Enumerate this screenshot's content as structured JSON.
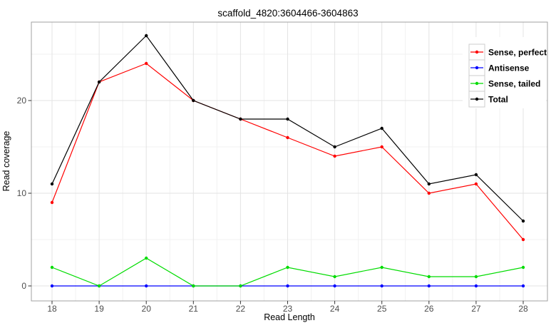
{
  "title": "scaffold_4820:3604466-3604863",
  "chart_data": {
    "type": "line",
    "title": "scaffold_4820:3604466-3604863",
    "xlabel": "Read Length",
    "ylabel": "Read coverage",
    "x": [
      18,
      19,
      20,
      21,
      22,
      23,
      24,
      25,
      26,
      27,
      28
    ],
    "series": [
      {
        "name": "Sense, perfect",
        "color": "#FF0000",
        "values": [
          9,
          22,
          24,
          20,
          18,
          16,
          14,
          15,
          10,
          11,
          5
        ]
      },
      {
        "name": "Antisense",
        "color": "#0000FF",
        "values": [
          0,
          0,
          0,
          0,
          0,
          0,
          0,
          0,
          0,
          0,
          0
        ]
      },
      {
        "name": "Sense, tailed",
        "color": "#00DC00",
        "values": [
          2,
          0,
          3,
          0,
          0,
          2,
          1,
          2,
          1,
          1,
          2
        ]
      },
      {
        "name": "Total",
        "color": "#000000",
        "values": [
          11,
          22,
          27,
          20,
          18,
          18,
          15,
          17,
          11,
          12,
          7
        ]
      }
    ],
    "yticks": [
      0,
      10,
      20
    ],
    "yticks_minor": [
      5,
      15,
      25
    ],
    "xticks_minor": [
      18.5,
      19.5,
      20.5,
      21.5,
      22.5,
      23.5,
      24.5,
      25.5,
      26.5,
      27.5
    ],
    "ylim": [
      -1.6,
      28.5
    ],
    "xlim": [
      17.56,
      28.51
    ],
    "grid": true,
    "legend_position": "top-right",
    "legend": [
      "Sense, perfect",
      "Antisense",
      "Sense, tailed",
      "Total"
    ]
  },
  "colors": {
    "panel_background": "#FFFFFF",
    "panel_border": "#A0A0A0",
    "grid_major": "#E3E3E3",
    "grid_minor": "#F1F1F1",
    "tick_mark": "#333333",
    "tick_label": "#4D4D4D",
    "title_color": "#000000",
    "legend_background": "#FFFFFF",
    "legend_key_border": "#CCCCCC",
    "legend_key_background": "#FFFFFF",
    "legend_text": "#000000"
  }
}
